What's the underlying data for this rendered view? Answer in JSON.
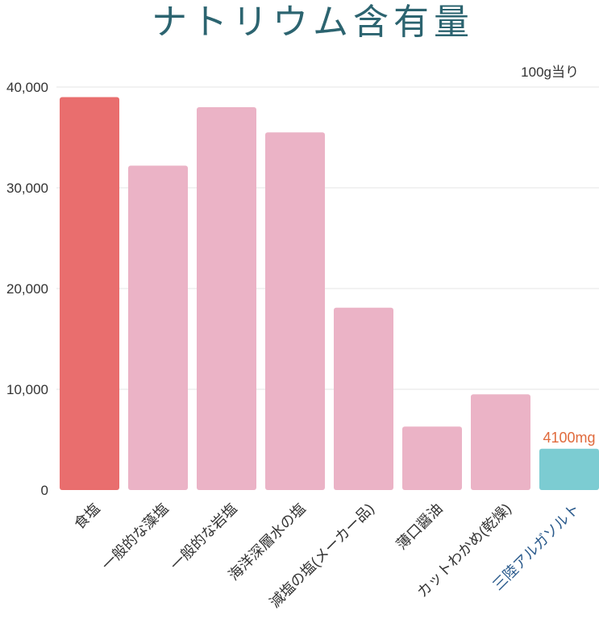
{
  "chart_data": {
    "type": "bar",
    "title": "ナトリウム含有量",
    "unit_note": "100g当り",
    "ylim": [
      0,
      40000
    ],
    "yticks": [
      0,
      10000,
      20000,
      30000,
      40000
    ],
    "ytick_labels": [
      "0",
      "10,000",
      "20,000",
      "30,000",
      "40,000"
    ],
    "grid": true,
    "categories": [
      "食塩",
      "一般的な藻塩",
      "一般的な岩塩",
      "海洋深層水の塩",
      "減塩の塩(メーカー品)",
      "薄口醤油",
      "カットわかめ(乾燥)",
      "三陸アルガソルト"
    ],
    "values": [
      39000,
      32200,
      38000,
      35500,
      18100,
      6300,
      9500,
      4100
    ],
    "data_labels": [
      {
        "index": 7,
        "text": "4100mg"
      }
    ],
    "colors": {
      "highlight_first": "#e96e6e",
      "default": "#ebb3c6",
      "highlight_last": "#7cccd2",
      "highlight_label": "#2a5a8c",
      "data_label": "#e06a3c"
    }
  }
}
